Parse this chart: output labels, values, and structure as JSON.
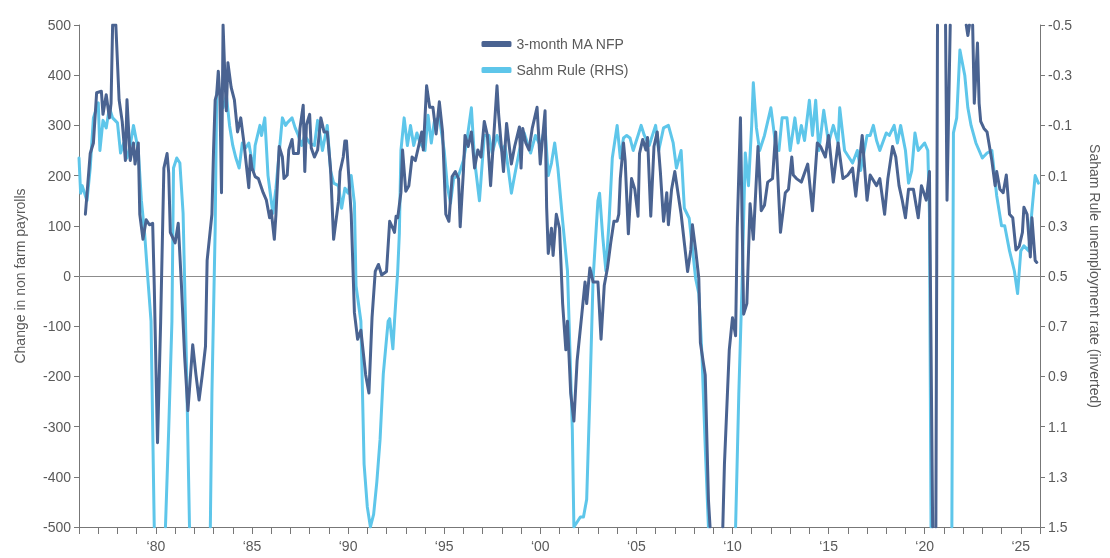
{
  "chart_data": {
    "type": "line",
    "ylabel": "Change in non farm payrolls",
    "y2label": "Saham Rule unemployment rate (inverted)",
    "xlim": [
      "1976",
      "2026"
    ],
    "xticks": [
      {
        "value": "1976",
        "label": null
      },
      {
        "value": "1977",
        "label": null
      },
      {
        "value": "1978",
        "label": null
      },
      {
        "value": "1979",
        "label": null
      },
      {
        "value": "1980",
        "label": "‘80"
      },
      {
        "value": "1981",
        "label": null
      },
      {
        "value": "1982",
        "label": null
      },
      {
        "value": "1983",
        "label": null
      },
      {
        "value": "1984",
        "label": null
      },
      {
        "value": "1985",
        "label": "‘85"
      },
      {
        "value": "1986",
        "label": null
      },
      {
        "value": "1987",
        "label": null
      },
      {
        "value": "1988",
        "label": null
      },
      {
        "value": "1989",
        "label": null
      },
      {
        "value": "1990",
        "label": "‘90"
      },
      {
        "value": "1991",
        "label": null
      },
      {
        "value": "1992",
        "label": null
      },
      {
        "value": "1993",
        "label": null
      },
      {
        "value": "1994",
        "label": null
      },
      {
        "value": "1995",
        "label": "‘95"
      },
      {
        "value": "1996",
        "label": null
      },
      {
        "value": "1997",
        "label": null
      },
      {
        "value": "1998",
        "label": null
      },
      {
        "value": "1999",
        "label": null
      },
      {
        "value": "2000",
        "label": "‘00"
      },
      {
        "value": "2001",
        "label": null
      },
      {
        "value": "2002",
        "label": null
      },
      {
        "value": "2003",
        "label": null
      },
      {
        "value": "2004",
        "label": null
      },
      {
        "value": "2005",
        "label": "‘05"
      },
      {
        "value": "2006",
        "label": null
      },
      {
        "value": "2007",
        "label": null
      },
      {
        "value": "2008",
        "label": null
      },
      {
        "value": "2009",
        "label": null
      },
      {
        "value": "2010",
        "label": "‘10"
      },
      {
        "value": "2011",
        "label": null
      },
      {
        "value": "2012",
        "label": null
      },
      {
        "value": "2013",
        "label": null
      },
      {
        "value": "2014",
        "label": null
      },
      {
        "value": "2015",
        "label": "‘15"
      },
      {
        "value": "2016",
        "label": null
      },
      {
        "value": "2017",
        "label": null
      },
      {
        "value": "2018",
        "label": null
      },
      {
        "value": "2019",
        "label": null
      },
      {
        "value": "2020",
        "label": "‘20"
      },
      {
        "value": "2021",
        "label": null
      },
      {
        "value": "2022",
        "label": null
      },
      {
        "value": "2023",
        "label": null
      },
      {
        "value": "2024",
        "label": null
      },
      {
        "value": "2025",
        "label": "‘25"
      },
      {
        "value": "2026",
        "label": null
      }
    ],
    "ylim": [
      -500,
      500
    ],
    "yticks": [
      -500,
      -400,
      -300,
      -200,
      -100,
      0,
      100,
      200,
      300,
      400,
      500
    ],
    "y2lim": [
      1.5,
      -0.5
    ],
    "y2ticks": [
      -0.5,
      -0.3,
      -0.1,
      0.1,
      0.3,
      0.5,
      0.7,
      0.9,
      1.1,
      1.3,
      1.5
    ],
    "grid": false,
    "legend": "top",
    "marker": "none",
    "line_style": "solid",
    "ref_lines": [
      {
        "axis": "y",
        "value": 0,
        "color": "#8c8c8c"
      }
    ],
    "series": [
      {
        "name": "3-month MA NFP",
        "color": "#4a6391",
        "x": [
          "1976-05",
          "1976-08",
          "1976-10",
          "1976-12",
          "1977-03",
          "1977-04",
          "1977-06",
          "1977-08",
          "1977-09",
          "1977-10",
          "1977-12",
          "1978-02",
          "1978-04",
          "1978-06",
          "1978-07",
          "1978-09",
          "1978-11",
          "1978-12",
          "1979-02",
          "1979-03",
          "1979-05",
          "1979-07",
          "1979-09",
          "1979-11",
          "1979-12",
          "1980-02",
          "1980-04",
          "1980-06",
          "1980-08",
          "1980-09",
          "1980-10",
          "1981-01",
          "1981-03",
          "1981-05",
          "1981-07",
          "1981-09",
          "1981-12",
          "1982-02",
          "1982-04",
          "1982-06",
          "1982-08",
          "1982-09",
          "1982-12",
          "1983-01",
          "1983-02",
          "1983-03",
          "1983-04",
          "1983-05",
          "1983-06",
          "1983-07",
          "1983-08",
          "1983-09",
          "1983-10",
          "1983-12",
          "1984-02",
          "1984-04",
          "1984-06",
          "1984-08",
          "1984-11",
          "1984-12",
          "1985-01",
          "1985-03",
          "1985-05",
          "1985-08",
          "1985-10",
          "1985-12",
          "1986-01",
          "1986-03",
          "1986-04",
          "1986-06",
          "1986-08",
          "1986-09",
          "1986-11",
          "1986-12",
          "1987-02",
          "1987-03",
          "1987-06",
          "1987-07",
          "1987-09",
          "1987-10",
          "1987-11",
          "1988-01",
          "1988-02",
          "1988-04",
          "1988-06",
          "1988-08",
          "1988-10",
          "1988-12",
          "1989-02",
          "1989-04",
          "1989-07",
          "1989-08",
          "1989-10",
          "1989-11",
          "1989-12",
          "1990-03",
          "1990-05",
          "1990-07",
          "1990-09",
          "1990-12",
          "1991-02",
          "1991-04",
          "1991-06",
          "1991-08",
          "1991-10",
          "1992-01",
          "1992-03",
          "1992-05",
          "1992-06",
          "1992-07",
          "1992-08",
          "1992-10",
          "1992-11",
          "1993-01",
          "1993-03",
          "1993-05",
          "1993-07",
          "1993-09",
          "1993-11",
          "1993-12",
          "1994-02",
          "1994-04",
          "1994-06",
          "1994-08",
          "1994-10",
          "1994-12",
          "1995-02",
          "1995-04",
          "1995-06",
          "1995-08",
          "1995-10",
          "1995-11",
          "1996-01",
          "1996-02",
          "1996-04",
          "1996-06",
          "1996-08",
          "1996-10",
          "1996-12",
          "1997-02",
          "1997-04",
          "1997-06",
          "1997-10",
          "1997-11",
          "1998-02",
          "1998-04",
          "1998-07",
          "1998-09",
          "1998-12",
          "1999-01",
          "1999-02",
          "1999-04",
          "1999-06",
          "1999-08",
          "1999-11",
          "2000-01",
          "2000-04",
          "2000-05",
          "2000-06",
          "2000-08",
          "2000-09",
          "2000-11",
          "2001-01",
          "2001-03",
          "2001-05",
          "2001-06",
          "2001-08",
          "2001-10",
          "2001-12",
          "2002-03",
          "2002-05",
          "2002-06",
          "2002-08",
          "2002-10",
          "2003-01",
          "2003-03",
          "2003-05",
          "2003-07",
          "2003-09",
          "2003-11",
          "2004-01",
          "2004-02",
          "2004-03",
          "2004-05",
          "2004-06",
          "2004-08",
          "2004-10",
          "2004-12",
          "2005-02",
          "2005-03",
          "2005-05",
          "2005-07",
          "2005-08",
          "2005-10",
          "2005-12",
          "2006-02",
          "2006-04",
          "2006-06",
          "2006-08",
          "2006-09",
          "2006-11",
          "2007-01",
          "2007-04",
          "2007-05",
          "2007-07",
          "2007-09",
          "2007-11",
          "2007-12",
          "2008-02",
          "2008-04",
          "2008-05",
          "2008-07",
          "2008-08",
          "2008-10",
          "2008-11",
          "2009-03",
          "2009-07",
          "2009-08",
          "2009-11",
          "2010-01",
          "2010-03",
          "2010-04",
          "2010-06",
          "2010-08",
          "2010-10",
          "2010-12",
          "2011-02",
          "2011-05",
          "2011-07",
          "2011-09",
          "2011-11",
          "2012-02",
          "2012-04",
          "2012-07",
          "2012-10",
          "2012-12",
          "2013-02",
          "2013-03",
          "2013-05",
          "2013-08",
          "2013-12",
          "2014-03",
          "2014-06",
          "2014-08",
          "2014-11",
          "2015-01",
          "2015-04",
          "2015-07",
          "2015-10",
          "2016-01",
          "2016-04",
          "2016-06",
          "2016-10",
          "2017-01",
          "2017-03",
          "2017-07",
          "2017-09",
          "2017-12",
          "2018-02",
          "2018-05",
          "2018-07",
          "2018-09",
          "2018-11",
          "2019-01",
          "2019-03",
          "2019-06",
          "2019-09",
          "2019-11",
          "2020-02",
          "2020-04",
          "2020-06",
          "2020-07",
          "2020-08",
          "2020-09",
          "2020-11",
          "2021-02",
          "2021-03",
          "2021-05",
          "2021-10",
          "2022-03",
          "2022-04",
          "2022-05",
          "2022-06",
          "2022-07",
          "2022-08",
          "2022-10",
          "2022-11",
          "2022-12",
          "2023-02",
          "2023-04",
          "2023-07",
          "2023-09",
          "2023-10",
          "2023-12",
          "2024-02",
          "2024-04",
          "2024-06",
          "2024-08",
          "2024-10",
          "2024-12",
          "2025-02",
          "2025-03",
          "2025-05",
          "2025-07",
          "2025-08",
          "2025-10",
          "2025-11"
        ],
        "values": [
          123,
          244,
          265,
          365,
          368,
          322,
          361,
          315,
          344,
          500,
          500,
          351,
          308,
          230,
          351,
          230,
          265,
          223,
          265,
          123,
          73,
          112,
          102,
          105,
          -19,
          -332,
          -90,
          215,
          244,
          205,
          87,
          66,
          105,
          -19,
          -161,
          -268,
          -137,
          -197,
          -247,
          -197,
          -140,
          31,
          123,
          251,
          351,
          361,
          408,
          358,
          166,
          500,
          408,
          329,
          425,
          376,
          351,
          287,
          315,
          265,
          176,
          240,
          215,
          198,
          194,
          166,
          151,
          116,
          130,
          73,
          123,
          258,
          237,
          194,
          201,
          251,
          272,
          244,
          244,
          294,
          340,
          208,
          301,
          322,
          255,
          237,
          251,
          315,
          287,
          287,
          215,
          73,
          148,
          208,
          237,
          269,
          269,
          123,
          -73,
          -126,
          -108,
          -197,
          -233,
          -83,
          9,
          23,
          2,
          9,
          109,
          95,
          87,
          119,
          116,
          166,
          251,
          169,
          180,
          237,
          230,
          258,
          287,
          251,
          379,
          336,
          336,
          283,
          347,
          287,
          123,
          109,
          198,
          208,
          194,
          98,
          208,
          280,
          258,
          287,
          215,
          251,
          237,
          308,
          280,
          180,
          379,
          322,
          208,
          304,
          223,
          258,
          297,
          215,
          294,
          265,
          251,
          294,
          336,
          223,
          329,
          137,
          45,
          95,
          41,
          123,
          95,
          -55,
          -147,
          -90,
          -233,
          -289,
          -169,
          -76,
          -12,
          -55,
          16,
          -12,
          -12,
          -126,
          -19,
          16,
          66,
          109,
          109,
          123,
          194,
          265,
          230,
          84,
          194,
          173,
          119,
          244,
          272,
          251,
          276,
          119,
          258,
          287,
          208,
          109,
          166,
          102,
          173,
          208,
          144,
          123,
          66,
          9,
          52,
          102,
          52,
          -5,
          -133,
          -176,
          -197,
          -446,
          -500,
          null,
          -500,
          -375,
          -147,
          -83,
          -119,
          95,
          315,
          -76,
          -55,
          144,
          73,
          258,
          130,
          141,
          187,
          194,
          287,
          87,
          166,
          173,
          237,
          201,
          194,
          187,
          223,
          130,
          265,
          258,
          237,
          280,
          187,
          265,
          194,
          201,
          215,
          159,
          280,
          151,
          201,
          180,
          194,
          123,
          194,
          258,
          237,
          180,
          151,
          116,
          173,
          173,
          116,
          180,
          151,
          208,
          -500,
          null,
          -500,
          500,
          null,
          500,
          151,
          500,
          null,
          500,
          479,
          500,
          null,
          500,
          344,
          464,
          344,
          308,
          294,
          287,
          230,
          180,
          208,
          173,
          166,
          201,
          123,
          116,
          52,
          59,
          87,
          137,
          123,
          38,
          116,
          31,
          27
        ]
      },
      {
        "name": "Sahm Rule (RHS)",
        "color": "#5ec6ea",
        "axis": "y2",
        "x": [
          "1976-01",
          "1976-02",
          "1976-03",
          "1976-06",
          "1976-08",
          "1976-10",
          "1977-01",
          "1977-02",
          "1977-04",
          "1977-06",
          "1977-08",
          "1977-10",
          "1978-01",
          "1978-03",
          "1978-05",
          "1978-07",
          "1978-09",
          "1978-11",
          "1979-02",
          "1979-04",
          "1979-06",
          "1979-08",
          "1979-10",
          "1979-12",
          "1980-03",
          "1980-07",
          "1980-09",
          "1980-11",
          "1980-12",
          "1981-02",
          "1981-04",
          "1981-06",
          "1981-08",
          "1981-10",
          "1982-04",
          "1982-11",
          "1982-12",
          "1983-02",
          "1983-03",
          "1983-04",
          "1983-07",
          "1983-09",
          "1983-11",
          "1984-01",
          "1984-03",
          "1984-05",
          "1984-07",
          "1984-09",
          "1984-11",
          "1985-02",
          "1985-03",
          "1985-06",
          "1985-07",
          "1985-09",
          "1985-11",
          "1986-02",
          "1986-04",
          "1986-06",
          "1986-08",
          "1986-10",
          "1986-11",
          "1987-02",
          "1987-04",
          "1987-06",
          "1987-08",
          "1987-10",
          "1988-01",
          "1988-04",
          "1988-06",
          "1988-09",
          "1988-12",
          "1989-02",
          "1989-04",
          "1989-07",
          "1989-09",
          "1989-11",
          "1990-01",
          "1990-03",
          "1990-05",
          "1990-06",
          "1990-09",
          "1990-11",
          "1991-01",
          "1991-03",
          "1991-05",
          "1991-07",
          "1991-09",
          "1991-11",
          "1992-02",
          "1992-03",
          "1992-05",
          "1992-06",
          "1992-08",
          "1992-09",
          "1992-10",
          "1992-12",
          "1993-02",
          "1993-04",
          "1993-06",
          "1993-08",
          "1993-10",
          "1994-01",
          "1994-03",
          "1994-05",
          "1994-07",
          "1994-10",
          "1995-01",
          "1995-03",
          "1995-05",
          "1995-07",
          "1995-10",
          "1996-01",
          "1996-03",
          "1996-06",
          "1996-08",
          "1996-11",
          "1997-02",
          "1997-05",
          "1997-07",
          "1997-10",
          "1998-01",
          "1998-03",
          "1998-05",
          "1998-07",
          "1998-09",
          "1998-12",
          "1999-03",
          "1999-07",
          "1999-10",
          "2000-01",
          "2000-04",
          "2000-06",
          "2000-08",
          "2000-10",
          "2000-12",
          "2001-03",
          "2001-06",
          "2001-07",
          "2001-09",
          "2001-10",
          "2002-02",
          "2002-04",
          "2002-06",
          "2002-08",
          "2002-10",
          "2003-01",
          "2003-02",
          "2003-04",
          "2003-06",
          "2003-08",
          "2003-10",
          "2004-01",
          "2004-03",
          "2004-05",
          "2004-07",
          "2004-09",
          "2004-11",
          "2005-02",
          "2005-04",
          "2005-06",
          "2005-09",
          "2006-01",
          "2006-03",
          "2006-06",
          "2006-09",
          "2006-12",
          "2007-02",
          "2007-05",
          "2007-07",
          "2007-10",
          "2008-02",
          "2008-04",
          "2008-06",
          "2008-08",
          "2008-10",
          "2009-07",
          "2010-03",
          "2010-05",
          "2010-07",
          "2010-09",
          "2010-11",
          "2011-01",
          "2011-02",
          "2011-04",
          "2011-06",
          "2011-09",
          "2012-01",
          "2012-02",
          "2012-04",
          "2012-06",
          "2012-08",
          "2012-11",
          "2013-01",
          "2013-04",
          "2013-06",
          "2013-08",
          "2013-10",
          "2014-01",
          "2014-03",
          "2014-05",
          "2014-07",
          "2014-10",
          "2015-01",
          "2015-04",
          "2015-07",
          "2015-08",
          "2015-11",
          "2016-04",
          "2016-07",
          "2016-09",
          "2017-01",
          "2017-03",
          "2017-05",
          "2017-07",
          "2017-09",
          "2018-01",
          "2018-03",
          "2018-06",
          "2018-08",
          "2018-10",
          "2019-01",
          "2019-03",
          "2019-05",
          "2019-07",
          "2019-09",
          "2020-01",
          "2020-03",
          "2020-04",
          "2020-05",
          "2020-12",
          "2021-06",
          "2021-07",
          "2021-09",
          "2021-11",
          "2022-02",
          "2022-04",
          "2022-06",
          "2022-09",
          "2023-01",
          "2023-04",
          "2023-07",
          "2023-10",
          "2024-01",
          "2024-03",
          "2024-06",
          "2024-09",
          "2024-11",
          "2025-01",
          "2025-03",
          "2025-06",
          "2025-08",
          "2025-10",
          "2025-12"
        ],
        "values": [
          0.03,
          0.17,
          0.14,
          0.2,
          0.07,
          -0.13,
          -0.19,
          0.0,
          -0.12,
          -0.09,
          -0.17,
          -0.13,
          -0.11,
          0.01,
          -0.03,
          0.03,
          -0.02,
          -0.1,
          0.0,
          0.2,
          0.33,
          0.51,
          0.68,
          1.5,
          null,
          1.5,
          1.11,
          0.68,
          0.07,
          0.03,
          0.05,
          0.25,
          0.82,
          1.5,
          null,
          1.5,
          0.97,
          0.31,
          -0.22,
          -0.26,
          -0.17,
          -0.22,
          -0.1,
          -0.02,
          0.03,
          0.07,
          -0.03,
          -0.01,
          -0.03,
          0.08,
          -0.02,
          -0.1,
          -0.06,
          -0.13,
          0.1,
          0.25,
          0.15,
          0.01,
          -0.13,
          -0.1,
          -0.11,
          -0.13,
          -0.09,
          -0.06,
          -0.02,
          -0.06,
          -0.03,
          -0.02,
          -0.12,
          0.0,
          -0.1,
          0.08,
          0.13,
          0.14,
          0.23,
          0.15,
          0.17,
          0.1,
          0.21,
          0.54,
          0.68,
          1.25,
          1.42,
          1.5,
          1.45,
          1.32,
          1.15,
          0.89,
          0.68,
          0.67,
          0.79,
          0.68,
          0.48,
          0.33,
          0.0,
          -0.13,
          -0.02,
          -0.1,
          -0.02,
          -0.07,
          -0.03,
          0.0,
          -0.14,
          -0.03,
          -0.12,
          -0.13,
          0.0,
          0.14,
          0.21,
          0.11,
          0.1,
          0.04,
          -0.03,
          -0.17,
          0.04,
          0.2,
          -0.06,
          -0.06,
          0.01,
          -0.06,
          0.0,
          -0.02,
          0.07,
          0.17,
          0.1,
          0.0,
          -0.07,
          0.01,
          -0.06,
          -0.02,
          -0.09,
          0.1,
          0.05,
          -0.03,
          0.07,
          0.28,
          0.48,
          0.68,
          1.11,
          1.5,
          1.46,
          1.46,
          1.39,
          0.97,
          0.51,
          0.2,
          0.17,
          0.34,
          0.48,
          0.28,
          0.03,
          -0.1,
          0.03,
          -0.05,
          -0.06,
          -0.05,
          0.0,
          -0.06,
          -0.1,
          -0.06,
          -0.02,
          -0.1,
          0.0,
          -0.09,
          -0.1,
          -0.03,
          0.07,
          0.0,
          0.23,
          0.27,
          0.51,
          0.57,
          0.82,
          1.18,
          1.5,
          null,
          1.5,
          0.97,
          0.54,
          0.01,
          0.14,
          -0.1,
          -0.27,
          -0.09,
          0.0,
          -0.06,
          -0.17,
          -0.12,
          -0.02,
          0.0,
          -0.13,
          -0.13,
          0.0,
          -0.13,
          -0.03,
          -0.1,
          -0.04,
          -0.2,
          -0.06,
          -0.2,
          0.0,
          -0.16,
          -0.03,
          -0.1,
          -0.03,
          -0.17,
          0.0,
          0.05,
          0.0,
          0.08,
          -0.06,
          -0.06,
          -0.1,
          -0.04,
          0.0,
          -0.07,
          -0.06,
          -0.1,
          -0.03,
          -0.1,
          0.0,
          0.13,
          0.08,
          -0.07,
          0.0,
          -0.03,
          0.0,
          0.25,
          1.5,
          null,
          1.5,
          -0.07,
          -0.13,
          -0.4,
          -0.3,
          -0.17,
          -0.1,
          -0.03,
          0.03,
          0.01,
          0.0,
          0.18,
          0.3,
          0.3,
          0.4,
          0.48,
          0.57,
          0.4,
          0.38,
          0.4,
          0.24,
          0.1,
          0.13
        ]
      }
    ]
  }
}
